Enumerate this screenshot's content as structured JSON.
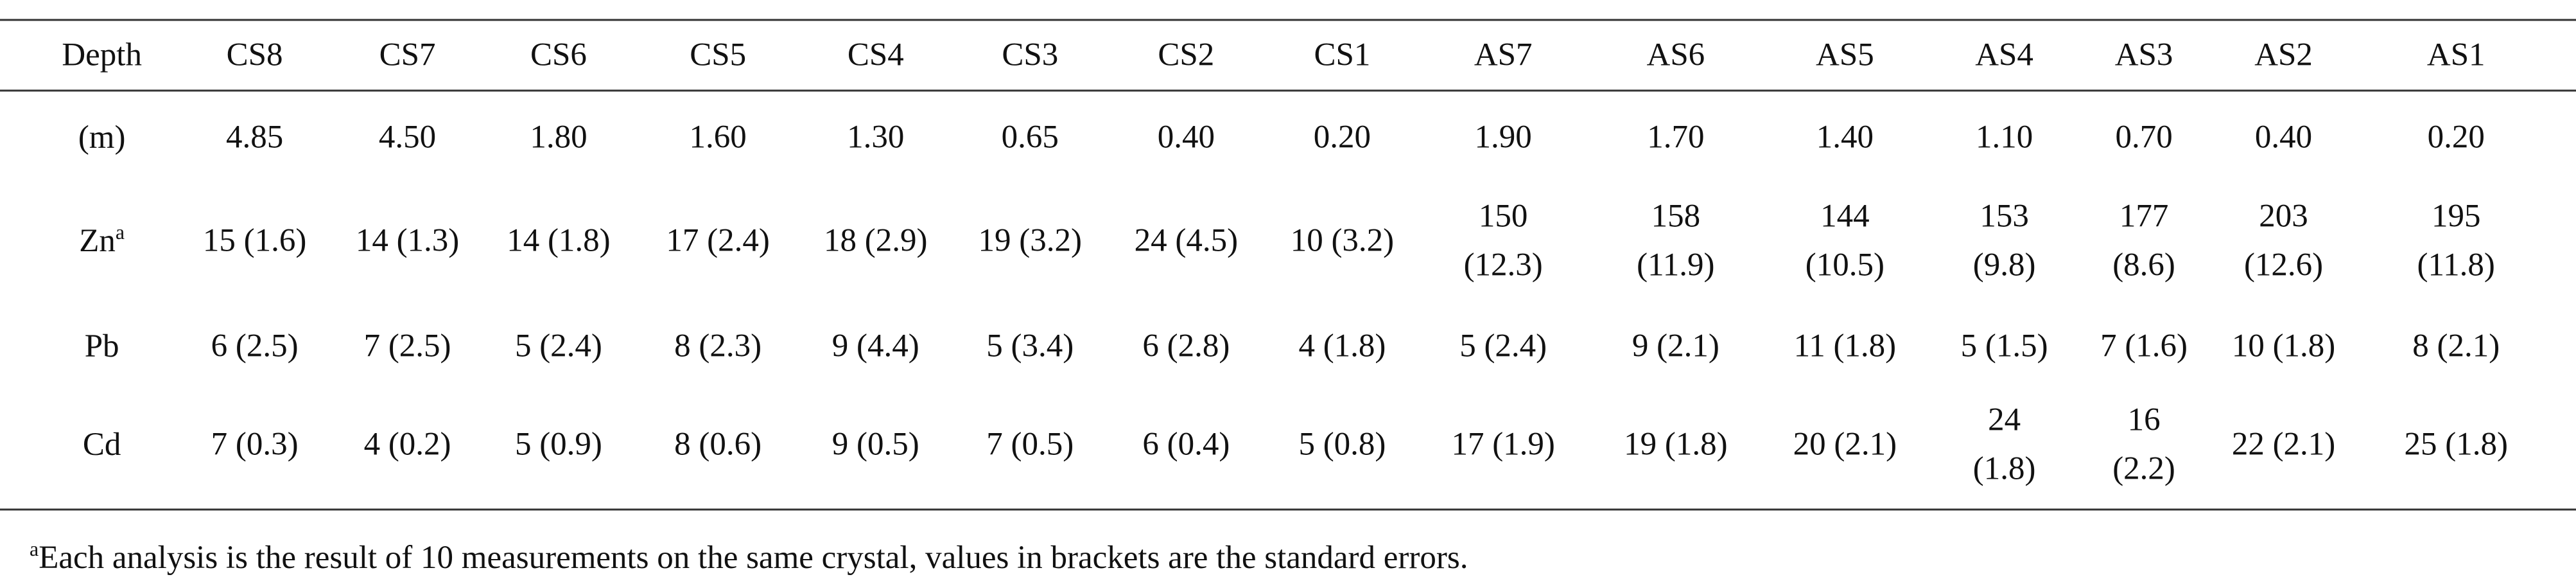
{
  "table": {
    "header": [
      "Depth",
      "CS8",
      "CS7",
      "CS6",
      "CS5",
      "CS4",
      "CS3",
      "CS2",
      "CS1",
      "AS7",
      "AS6",
      "AS5",
      "AS4",
      "AS3",
      "AS2",
      "AS1"
    ],
    "rows": [
      {
        "label": "(m)",
        "cells": [
          "4.85",
          "4.50",
          "1.80",
          "1.60",
          "1.30",
          "0.65",
          "0.40",
          "0.20",
          "1.90",
          "1.70",
          "1.40",
          "1.10",
          "0.70",
          "0.40",
          "0.20"
        ]
      },
      {
        "label": "Zn",
        "label_sup": "a",
        "cells": [
          "15 (1.6)",
          "14 (1.3)",
          "14 (1.8)",
          "17 (2.4)",
          "18 (2.9)",
          "19 (3.2)",
          "24 (4.5)",
          "10 (3.2)",
          [
            "150",
            "(12.3)"
          ],
          [
            "158",
            "(11.9)"
          ],
          [
            "144",
            "(10.5)"
          ],
          [
            "153",
            "(9.8)"
          ],
          [
            "177",
            "(8.6)"
          ],
          [
            "203",
            "(12.6)"
          ],
          [
            "195",
            "(11.8)"
          ]
        ]
      },
      {
        "label": "Pb",
        "cells": [
          "6 (2.5)",
          "7 (2.5)",
          "5 (2.4)",
          "8 (2.3)",
          "9 (4.4)",
          "5 (3.4)",
          "6 (2.8)",
          "4 (1.8)",
          "5 (2.4)",
          "9 (2.1)",
          "11 (1.8)",
          "5 (1.5)",
          "7 (1.6)",
          "10 (1.8)",
          "8 (2.1)"
        ]
      },
      {
        "label": "Cd",
        "cells": [
          "7 (0.3)",
          "4 (0.2)",
          "5 (0.9)",
          "8 (0.6)",
          "9 (0.5)",
          "7 (0.5)",
          "6 (0.4)",
          "5 (0.8)",
          "17 (1.9)",
          "19 (1.8)",
          "20 (2.1)",
          [
            "24",
            "(1.8)"
          ],
          [
            "16",
            "(2.2)"
          ],
          "22 (2.1)",
          "25 (1.8)"
        ]
      }
    ]
  },
  "footnote": {
    "sup": "a",
    "text": "Each analysis is the result of 10 measurements on the same crystal, values in brackets are the standard errors."
  }
}
